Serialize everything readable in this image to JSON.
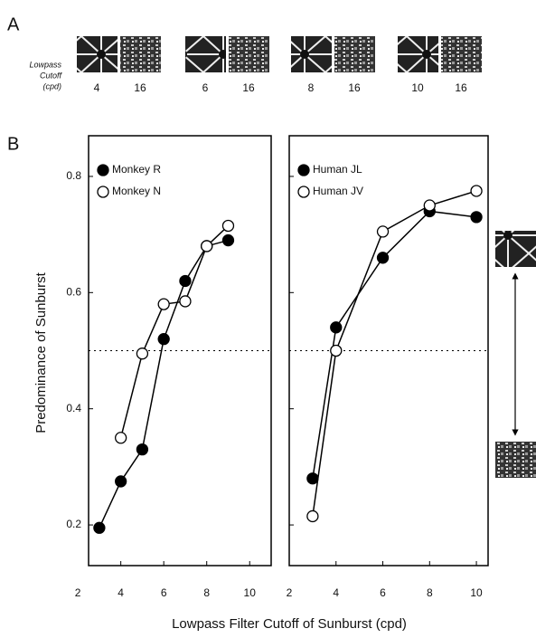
{
  "panel_a": {
    "label": "A",
    "cutoff_label": [
      "Lowpass",
      "Cutoff",
      "(cpd)"
    ],
    "pairs": [
      [
        "4",
        "16"
      ],
      [
        "6",
        "16"
      ],
      [
        "8",
        "16"
      ],
      [
        "10",
        "16"
      ]
    ]
  },
  "figure": {
    "panel_label": "B",
    "ylabel": "Predominance of Sunburst",
    "xlabel": "Lowpass Filter Cutoff of Sunburst (cpd)"
  },
  "chart_data": [
    {
      "type": "line",
      "xlim": [
        2.5,
        11
      ],
      "xticks": [
        2,
        4,
        6,
        8,
        10
      ],
      "ylim": [
        0.13,
        0.87
      ],
      "yticks": [
        0.2,
        0.4,
        0.6,
        0.8
      ],
      "ytick_labels": true,
      "refline": 0.5,
      "series": [
        {
          "name": "Monkey R",
          "color": "#000000",
          "marker_fill": "#000000",
          "x": [
            3,
            4,
            5,
            6,
            7,
            8,
            9
          ],
          "values": [
            0.195,
            0.275,
            0.33,
            0.52,
            0.62,
            0.68,
            0.69
          ]
        },
        {
          "name": "Monkey N",
          "color": "#000000",
          "marker_fill": "#ffffff",
          "x": [
            4,
            5,
            6,
            7,
            8,
            9
          ],
          "values": [
            0.35,
            0.495,
            0.58,
            0.585,
            0.68,
            0.715
          ]
        }
      ]
    },
    {
      "type": "line",
      "xlim": [
        2,
        10.5
      ],
      "xticks": [
        2,
        4,
        6,
        8,
        10
      ],
      "ylim": [
        0.13,
        0.87
      ],
      "yticks": [
        0.2,
        0.4,
        0.6,
        0.8
      ],
      "ytick_labels": false,
      "refline": 0.5,
      "series": [
        {
          "name": "Human JL",
          "color": "#000000",
          "marker_fill": "#000000",
          "x": [
            3,
            4,
            6,
            8,
            10
          ],
          "values": [
            0.28,
            0.54,
            0.66,
            0.74,
            0.73
          ]
        },
        {
          "name": "Human JV",
          "color": "#000000",
          "marker_fill": "#ffffff",
          "x": [
            3,
            4,
            6,
            8,
            10
          ],
          "values": [
            0.215,
            0.5,
            0.705,
            0.75,
            0.775
          ]
        }
      ]
    }
  ]
}
